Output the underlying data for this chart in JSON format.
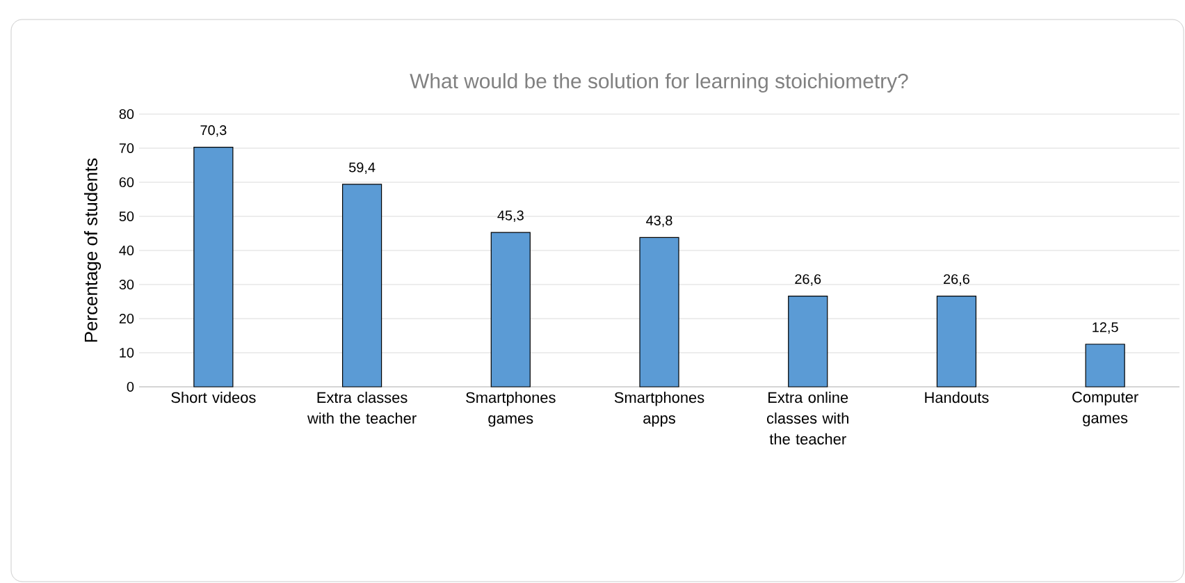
{
  "chart_data": {
    "type": "bar",
    "title": "What would be the solution for learning stoichiometry?",
    "ylabel": "Percentage of students",
    "categories": [
      "Short videos",
      "Extra classes with the teacher",
      "Smartphones games",
      "Smartphones apps",
      "Extra online classes with the teacher",
      "Handouts",
      "Computer games"
    ],
    "values": [
      70.3,
      59.4,
      45.3,
      43.8,
      26.6,
      26.6,
      12.5
    ],
    "value_labels": [
      "70,3",
      "59,4",
      "45,3",
      "43,8",
      "26,6",
      "26,6",
      "12,5"
    ],
    "color": "#5b9bd5",
    "ylim": [
      0,
      80
    ],
    "yticks": [
      0,
      10,
      20,
      30,
      40,
      50,
      60,
      70,
      80
    ],
    "grid": "y"
  }
}
